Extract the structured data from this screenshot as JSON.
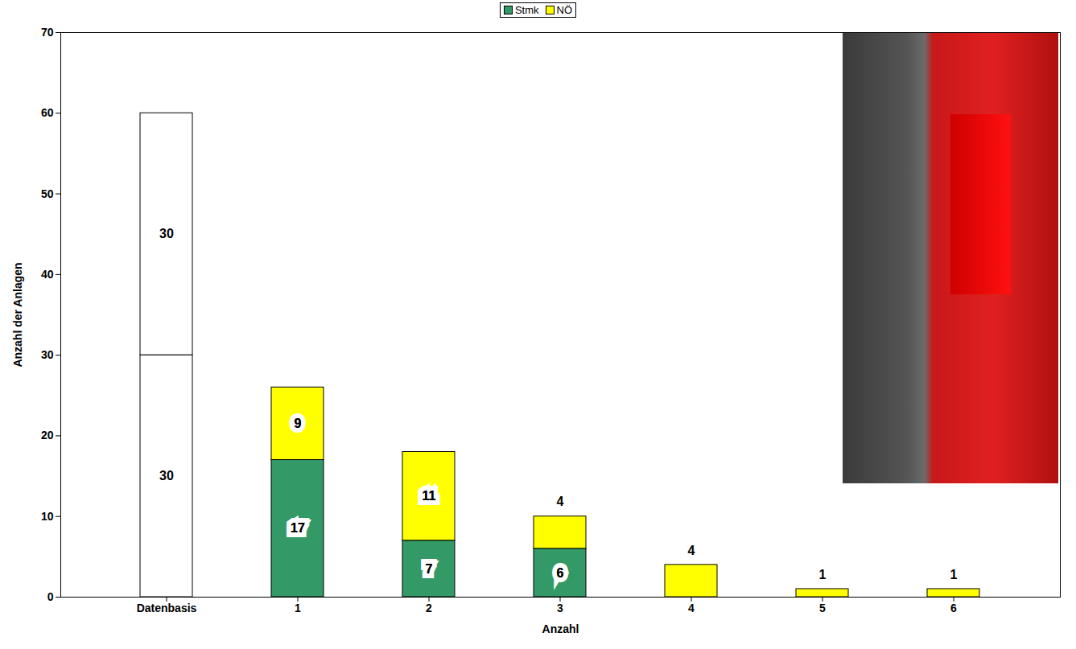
{
  "chart_data": {
    "type": "bar",
    "x_label": "Anzahl",
    "y_label": "Anzahl der Anlagen",
    "categories": [
      "Datenbasis",
      "1",
      "2",
      "3",
      "4",
      "5",
      "6"
    ],
    "series": [
      {
        "name": "Stmk",
        "color": "#339966",
        "colors": [
          "#ffffff",
          "#339966",
          "#339966",
          "#339966",
          "#339966",
          "#339966",
          "#339966"
        ],
        "values": [
          30,
          17,
          7,
          6,
          null,
          null,
          null
        ]
      },
      {
        "name": "NÖ",
        "color": "#ffff00",
        "colors": [
          "#ffffff",
          "#ffff00",
          "#ffff00",
          "#ffff00",
          "#ffff00",
          "#ffff00",
          "#ffff00"
        ],
        "values": [
          30,
          9,
          11,
          4,
          4,
          1,
          1
        ]
      }
    ],
    "ylim": [
      0,
      70
    ],
    "yticks": [
      0,
      10,
      20,
      30,
      40,
      50,
      60,
      70
    ],
    "stacked": true,
    "data_labels": true,
    "legend": "top",
    "grid": false
  }
}
